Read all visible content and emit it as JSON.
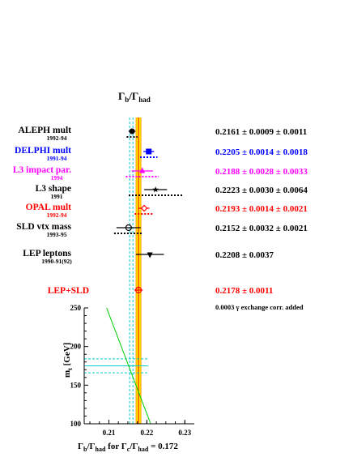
{
  "chart_data": {
    "type": "scatter",
    "title": "Γb/Γhad",
    "colors": {
      "black": "#000000",
      "blue": "#0000ff",
      "magenta": "#ff00ff",
      "red": "#ff0000",
      "band_fill": "#ffee00",
      "band_edge": "#ff9900",
      "cyan": "#00cccc",
      "green": "#00cc00"
    },
    "measurements": [
      {
        "name": "ALEPH mult",
        "years": "1992-94",
        "value": 0.2161,
        "stat": 0.0009,
        "syst": 0.0011,
        "result": "0.2161 ± 0.0009 ± 0.0011",
        "color": "black",
        "marker": "circle"
      },
      {
        "name": "DELPHI mult",
        "years": "1991-94",
        "value": 0.2205,
        "stat": 0.0014,
        "syst": 0.0018,
        "result": "0.2205 ± 0.0014 ± 0.0018",
        "color": "blue",
        "marker": "square"
      },
      {
        "name": "L3 impact par.",
        "years": "1994",
        "value": 0.2188,
        "stat": 0.0028,
        "syst": 0.0033,
        "result": "0.2188 ± 0.0028 ± 0.0033",
        "color": "magenta",
        "marker": "triangle"
      },
      {
        "name": "L3 shape",
        "years": "1991",
        "value": 0.2223,
        "stat": 0.003,
        "syst": 0.0064,
        "result": "0.2223 ± 0.0030 ± 0.0064",
        "color": "black",
        "marker": "star"
      },
      {
        "name": "OPAL mult",
        "years": "1992-94",
        "value": 0.2193,
        "stat": 0.0014,
        "syst": 0.0021,
        "result": "0.2193 ± 0.0014 ± 0.0021",
        "color": "red",
        "marker": "diamond"
      },
      {
        "name": "SLD vtx mass",
        "years": "1993-95",
        "value": 0.2152,
        "stat": 0.0032,
        "syst": 0.0021,
        "result": "0.2152 ± 0.0032 ± 0.0021",
        "color": "black",
        "marker": "open-circle"
      },
      {
        "name": "LEP leptons",
        "years": "1990-91(92)",
        "value": 0.2208,
        "stat": 0.0037,
        "syst": null,
        "result": "0.2208 ± 0.0037",
        "color": "black",
        "marker": "down-triangle"
      }
    ],
    "average": {
      "name": "LEP+SLD",
      "value": 0.2178,
      "error": 0.0011,
      "result": "0.2178 ± 0.0011",
      "color": "red",
      "marker": "open-circle-cross"
    },
    "note": "0.0003 γ exchange corr. added",
    "sm_band": {
      "center": 0.2159,
      "half_width": 0.0002
    },
    "mt_panel": {
      "ylabel": "mt [GeV]",
      "ylim": [
        100,
        250
      ],
      "yticks": [
        100,
        150,
        200,
        250
      ],
      "mt_central": 175,
      "mt_band": [
        166,
        184
      ],
      "sm_prediction": [
        {
          "mt": 250,
          "rb": 0.2094
        },
        {
          "mt": 100,
          "rb": 0.221
        }
      ]
    },
    "xlim": [
      0.2035,
      0.2325
    ],
    "xticks": [
      0.21,
      0.22,
      0.23
    ],
    "xtick_labels": [
      "0.21",
      "0.22",
      "0.23"
    ],
    "xlabel": "Γb/Γhad for Γc/Γhad = 0.172"
  }
}
